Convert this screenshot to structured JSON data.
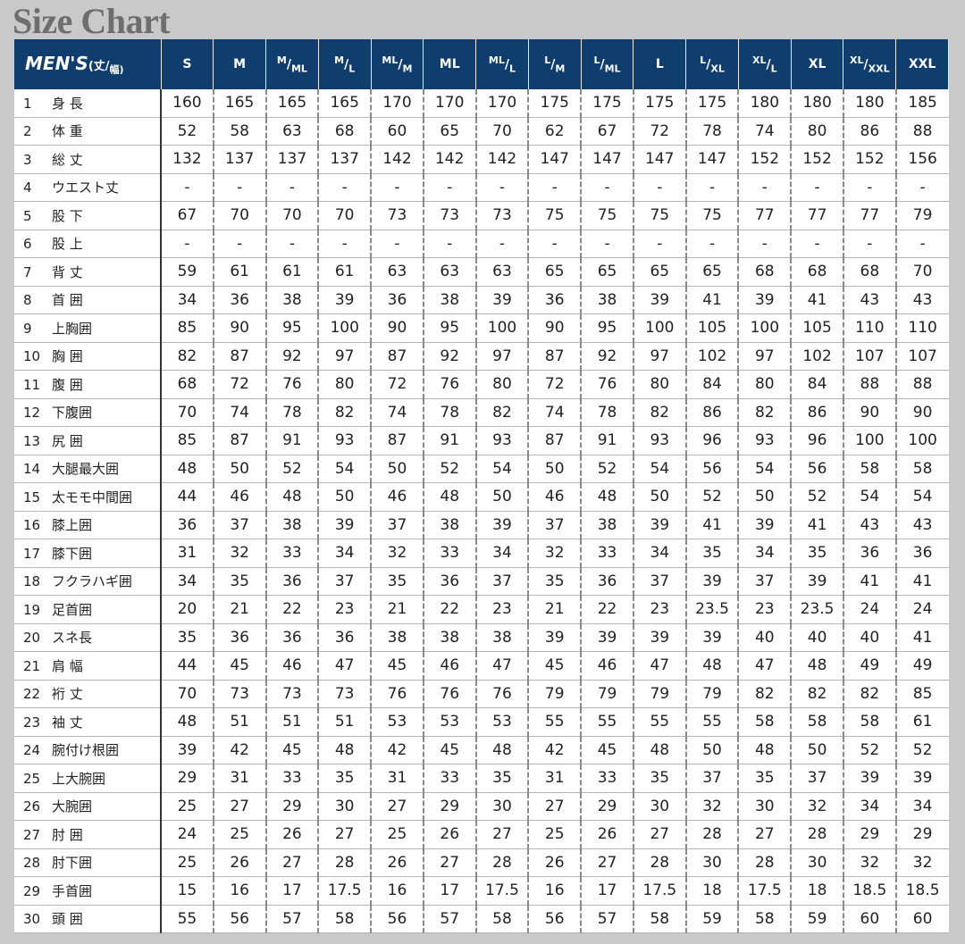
{
  "title": "Size Chart",
  "table": {
    "corner": {
      "label": "MEN'S",
      "unit": "(丈/幅)"
    },
    "sizes": [
      "S",
      "M",
      "M/ML",
      "M/L",
      "ML/M",
      "ML",
      "ML/L",
      "L/M",
      "L/ML",
      "L",
      "L/XL",
      "XL/L",
      "XL",
      "XL/XXL",
      "XXL"
    ],
    "rows": [
      {
        "no": 1,
        "label": "身 長",
        "values": [
          160,
          165,
          165,
          165,
          170,
          170,
          170,
          175,
          175,
          175,
          175,
          180,
          180,
          180,
          185
        ]
      },
      {
        "no": 2,
        "label": "体 重",
        "values": [
          52,
          58,
          63,
          68,
          60,
          65,
          70,
          62,
          67,
          72,
          78,
          74,
          80,
          86,
          88
        ]
      },
      {
        "no": 3,
        "label": "総 丈",
        "values": [
          132,
          137,
          137,
          137,
          142,
          142,
          142,
          147,
          147,
          147,
          147,
          152,
          152,
          152,
          156
        ]
      },
      {
        "no": 4,
        "label": "ウエスト丈",
        "values": [
          "-",
          "-",
          "-",
          "-",
          "-",
          "-",
          "-",
          "-",
          "-",
          "-",
          "-",
          "-",
          "-",
          "-",
          "-"
        ]
      },
      {
        "no": 5,
        "label": "股 下",
        "values": [
          67,
          70,
          70,
          70,
          73,
          73,
          73,
          75,
          75,
          75,
          75,
          77,
          77,
          77,
          79
        ]
      },
      {
        "no": 6,
        "label": "股 上",
        "values": [
          "-",
          "-",
          "-",
          "-",
          "-",
          "-",
          "-",
          "-",
          "-",
          "-",
          "-",
          "-",
          "-",
          "-",
          "-"
        ]
      },
      {
        "no": 7,
        "label": "背 丈",
        "values": [
          59,
          61,
          61,
          61,
          63,
          63,
          63,
          65,
          65,
          65,
          65,
          68,
          68,
          68,
          70
        ]
      },
      {
        "no": 8,
        "label": "首 囲",
        "values": [
          34,
          36,
          38,
          39,
          36,
          38,
          39,
          36,
          38,
          39,
          41,
          39,
          41,
          43,
          43
        ]
      },
      {
        "no": 9,
        "label": "上胸囲",
        "values": [
          85,
          90,
          95,
          100,
          90,
          95,
          100,
          90,
          95,
          100,
          105,
          100,
          105,
          110,
          110
        ]
      },
      {
        "no": 10,
        "label": "胸 囲",
        "values": [
          82,
          87,
          92,
          97,
          87,
          92,
          97,
          87,
          92,
          97,
          102,
          97,
          102,
          107,
          107
        ]
      },
      {
        "no": 11,
        "label": "腹 囲",
        "values": [
          68,
          72,
          76,
          80,
          72,
          76,
          80,
          72,
          76,
          80,
          84,
          80,
          84,
          88,
          88
        ]
      },
      {
        "no": 12,
        "label": "下腹囲",
        "values": [
          70,
          74,
          78,
          82,
          74,
          78,
          82,
          74,
          78,
          82,
          86,
          82,
          86,
          90,
          90
        ]
      },
      {
        "no": 13,
        "label": "尻 囲",
        "values": [
          85,
          87,
          91,
          93,
          87,
          91,
          93,
          87,
          91,
          93,
          96,
          93,
          96,
          100,
          100
        ]
      },
      {
        "no": 14,
        "label": "大腿最大囲",
        "values": [
          48,
          50,
          52,
          54,
          50,
          52,
          54,
          50,
          52,
          54,
          56,
          54,
          56,
          58,
          58
        ]
      },
      {
        "no": 15,
        "label": "太モモ中間囲",
        "values": [
          44,
          46,
          48,
          50,
          46,
          48,
          50,
          46,
          48,
          50,
          52,
          50,
          52,
          54,
          54
        ]
      },
      {
        "no": 16,
        "label": "膝上囲",
        "values": [
          36,
          37,
          38,
          39,
          37,
          38,
          39,
          37,
          38,
          39,
          41,
          39,
          41,
          43,
          43
        ]
      },
      {
        "no": 17,
        "label": "膝下囲",
        "values": [
          31,
          32,
          33,
          34,
          32,
          33,
          34,
          32,
          33,
          34,
          35,
          34,
          35,
          36,
          36
        ]
      },
      {
        "no": 18,
        "label": "フクラハギ囲",
        "values": [
          34,
          35,
          36,
          37,
          35,
          36,
          37,
          35,
          36,
          37,
          39,
          37,
          39,
          41,
          41
        ]
      },
      {
        "no": 19,
        "label": "足首囲",
        "values": [
          20,
          21,
          22,
          23,
          21,
          22,
          23,
          21,
          22,
          23,
          23.5,
          23,
          23.5,
          24,
          24
        ]
      },
      {
        "no": 20,
        "label": "スネ長",
        "values": [
          35,
          36,
          36,
          36,
          38,
          38,
          38,
          39,
          39,
          39,
          39,
          40,
          40,
          40,
          41
        ]
      },
      {
        "no": 21,
        "label": "肩 幅",
        "values": [
          44,
          45,
          46,
          47,
          45,
          46,
          47,
          45,
          46,
          47,
          48,
          47,
          48,
          49,
          49
        ]
      },
      {
        "no": 22,
        "label": "裄 丈",
        "values": [
          70,
          73,
          73,
          73,
          76,
          76,
          76,
          79,
          79,
          79,
          79,
          82,
          82,
          82,
          85
        ]
      },
      {
        "no": 23,
        "label": "袖 丈",
        "values": [
          48,
          51,
          51,
          51,
          53,
          53,
          53,
          55,
          55,
          55,
          55,
          58,
          58,
          58,
          61
        ]
      },
      {
        "no": 24,
        "label": "腕付け根囲",
        "values": [
          39,
          42,
          45,
          48,
          42,
          45,
          48,
          42,
          45,
          48,
          50,
          48,
          50,
          52,
          52
        ]
      },
      {
        "no": 25,
        "label": "上大腕囲",
        "values": [
          29,
          31,
          33,
          35,
          31,
          33,
          35,
          31,
          33,
          35,
          37,
          35,
          37,
          39,
          39
        ]
      },
      {
        "no": 26,
        "label": "大腕囲",
        "values": [
          25,
          27,
          29,
          30,
          27,
          29,
          30,
          27,
          29,
          30,
          32,
          30,
          32,
          34,
          34
        ]
      },
      {
        "no": 27,
        "label": "肘 囲",
        "values": [
          24,
          25,
          26,
          27,
          25,
          26,
          27,
          25,
          26,
          27,
          28,
          27,
          28,
          29,
          29
        ]
      },
      {
        "no": 28,
        "label": "肘下囲",
        "values": [
          25,
          26,
          27,
          28,
          26,
          27,
          28,
          26,
          27,
          28,
          30,
          28,
          30,
          32,
          32
        ]
      },
      {
        "no": 29,
        "label": "手首囲",
        "values": [
          15,
          16,
          17,
          17.5,
          16,
          17,
          17.5,
          16,
          17,
          17.5,
          18,
          17.5,
          18,
          18.5,
          18.5
        ]
      },
      {
        "no": 30,
        "label": "頭 囲",
        "values": [
          55,
          56,
          57,
          58,
          56,
          57,
          58,
          56,
          57,
          58,
          59,
          58,
          59,
          60,
          60
        ]
      }
    ]
  }
}
